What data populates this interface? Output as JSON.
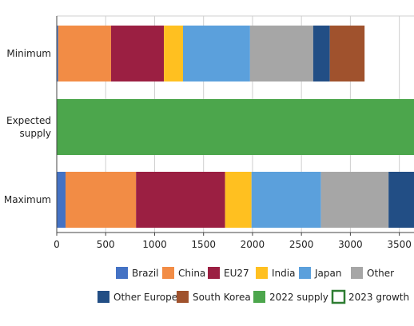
{
  "chart_data": {
    "type": "bar",
    "orientation": "horizontal",
    "stacked": true,
    "categories": [
      "Minimum",
      "Expected supply",
      "Maximum"
    ],
    "category_display": [
      [
        "Minimum"
      ],
      [
        "Expected",
        "supply"
      ],
      [
        "Maximum"
      ]
    ],
    "xlim": [
      0,
      3650
    ],
    "xticks": [
      0,
      500,
      1000,
      1500,
      2000,
      2500,
      3000,
      3500
    ],
    "xtick_labels": [
      "0",
      "500",
      "1000",
      "1500",
      "2000",
      "2500",
      "3000",
      "3500"
    ],
    "grid": "vertical",
    "legend_position": "bottom",
    "series": [
      {
        "name": "Brazil",
        "color": "#4472c4",
        "values": [
          15,
          null,
          90
        ]
      },
      {
        "name": "China",
        "color": "#f28c45",
        "values": [
          540,
          null,
          720
        ]
      },
      {
        "name": "EU27",
        "color": "#9b1f42",
        "values": [
          540,
          null,
          910
        ]
      },
      {
        "name": "India",
        "color": "#ffc020",
        "values": [
          195,
          null,
          270
        ]
      },
      {
        "name": "Japan",
        "color": "#5ba0dc",
        "values": [
          685,
          null,
          710
        ]
      },
      {
        "name": "Other",
        "color": "#a6a6a6",
        "values": [
          645,
          null,
          690
        ]
      },
      {
        "name": "Other Europe",
        "color": "#224e85",
        "values": [
          170,
          null,
          270
        ]
      },
      {
        "name": "South Korea",
        "color": "#a0522d",
        "values": [
          355,
          null,
          null
        ]
      },
      {
        "name": "2022 supply",
        "color": "#4ca64c",
        "values": [
          null,
          3650,
          null
        ]
      },
      {
        "name": "2023 growth",
        "color": "#ffffff",
        "border": "#2e7d32",
        "values": [
          null,
          null,
          null
        ]
      }
    ]
  }
}
